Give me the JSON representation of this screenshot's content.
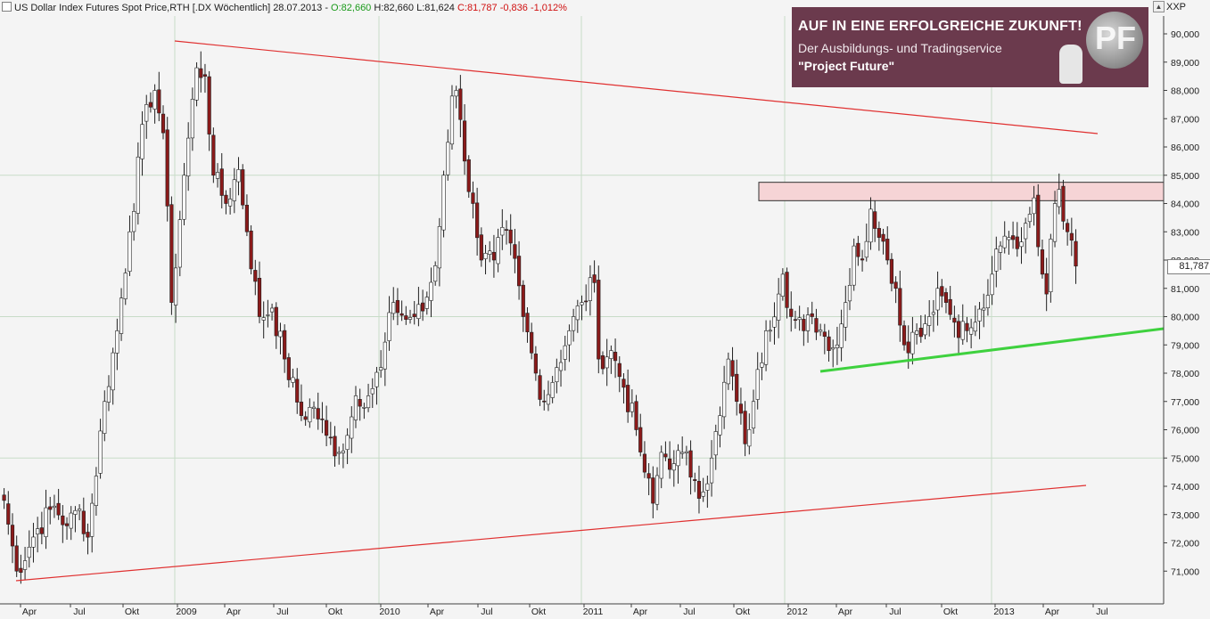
{
  "header": {
    "title": "US Dollar Index Futures Spot Price,RTH [.DX  Wöchentlich]",
    "date": "28.07.2013",
    "sep": "-",
    "open": "O:82,660",
    "high": "H:82,660",
    "low": "L:81,624",
    "close": "C:81,787",
    "change": "-0,836",
    "change_pct": "-1,012%",
    "corner_symbol": "XXP"
  },
  "ad": {
    "line1": "AUF IN EINE ERFOLGREICHE ZUKUNFT!",
    "line2": "Der Ausbildungs- und Tradingservice",
    "line3": "\"Project Future\"",
    "logo_text": "PF"
  },
  "price_label": "81,787",
  "colors": {
    "background": "#f4f4f4",
    "grid": "#c8dcc8",
    "bull_candle": "#ffffff",
    "bear_candle": "#8b1a1a",
    "trendline_red": "#e03030",
    "trendline_green": "#3ed13e",
    "zone_fill": "#f6d4d6",
    "ad_bg": "#6b3a4d"
  },
  "chart_data": {
    "type": "candlestick",
    "timeframe": "weekly",
    "ylim": [
      70.6,
      90.6
    ],
    "y_ticks": [
      "71,000",
      "72,000",
      "73,000",
      "74,000",
      "75,000",
      "76,000",
      "77,000",
      "78,000",
      "79,000",
      "80,000",
      "81,000",
      "82,000",
      "83,000",
      "84,000",
      "85,000",
      "86,000",
      "87,000",
      "88,000",
      "89,000",
      "90,000"
    ],
    "x_ticks": [
      "Apr",
      "Jul",
      "Okt",
      "2009",
      "Apr",
      "Jul",
      "Okt",
      "2010",
      "Apr",
      "Jul",
      "Okt",
      "2011",
      "Apr",
      "Jul",
      "Okt",
      "2012",
      "Apr",
      "Jul",
      "Okt",
      "2013",
      "Apr",
      "Jul"
    ],
    "x_range_weeks": [
      0,
      278
    ],
    "anchors": [
      [
        0,
        73.5
      ],
      [
        3,
        71.0
      ],
      [
        8,
        72.5
      ],
      [
        12,
        73.3
      ],
      [
        15,
        72.6
      ],
      [
        18,
        73.2
      ],
      [
        20,
        72.2
      ],
      [
        24,
        77.0
      ],
      [
        27,
        79.5
      ],
      [
        30,
        83.0
      ],
      [
        34,
        87.5
      ],
      [
        36,
        88.0
      ],
      [
        38,
        86.5
      ],
      [
        40,
        80.5
      ],
      [
        43,
        85.0
      ],
      [
        46,
        88.8
      ],
      [
        48,
        88.5
      ],
      [
        50,
        85.0
      ],
      [
        53,
        84.0
      ],
      [
        56,
        85.2
      ],
      [
        58,
        83.0
      ],
      [
        61,
        80.0
      ],
      [
        64,
        80.3
      ],
      [
        67,
        78.5
      ],
      [
        71,
        76.5
      ],
      [
        74,
        76.8
      ],
      [
        77,
        75.8
      ],
      [
        80,
        75.2
      ],
      [
        82,
        75.8
      ],
      [
        84,
        77.2
      ],
      [
        87,
        77.2
      ],
      [
        90,
        78.2
      ],
      [
        93,
        80.5
      ],
      [
        96,
        79.9
      ],
      [
        100,
        80.2
      ],
      [
        103,
        81.8
      ],
      [
        105,
        85.0
      ],
      [
        107,
        87.8
      ],
      [
        108,
        88.0
      ],
      [
        110,
        85.5
      ],
      [
        112,
        84.0
      ],
      [
        114,
        82.0
      ],
      [
        117,
        82.0
      ],
      [
        118,
        82.8
      ],
      [
        121,
        82.6
      ],
      [
        124,
        80.0
      ],
      [
        127,
        78.0
      ],
      [
        129,
        77.0
      ],
      [
        132,
        78.2
      ],
      [
        135,
        79.5
      ],
      [
        138,
        80.5
      ],
      [
        141,
        81.2
      ],
      [
        142,
        78.5
      ],
      [
        145,
        78.8
      ],
      [
        148,
        77.5
      ],
      [
        151,
        76.0
      ],
      [
        153,
        74.5
      ],
      [
        155,
        73.4
      ],
      [
        157,
        75.2
      ],
      [
        160,
        74.8
      ],
      [
        162,
        75.2
      ],
      [
        165,
        74.2
      ],
      [
        167,
        73.8
      ],
      [
        169,
        75.0
      ],
      [
        171,
        76.5
      ],
      [
        173,
        78.5
      ],
      [
        175,
        77.0
      ],
      [
        177,
        75.5
      ],
      [
        179,
        77.0
      ],
      [
        182,
        79.5
      ],
      [
        185,
        80.8
      ],
      [
        186,
        81.5
      ],
      [
        188,
        80.0
      ],
      [
        191,
        79.5
      ],
      [
        193,
        80.0
      ],
      [
        196,
        79.3
      ],
      [
        199,
        79.0
      ],
      [
        201,
        80.5
      ],
      [
        203,
        82.5
      ],
      [
        205,
        82.0
      ],
      [
        207,
        83.8
      ],
      [
        209,
        82.8
      ],
      [
        211,
        82.0
      ],
      [
        213,
        81.0
      ],
      [
        215,
        79.0
      ],
      [
        218,
        79.5
      ],
      [
        221,
        80.0
      ],
      [
        223,
        81.0
      ],
      [
        225,
        80.5
      ],
      [
        227,
        79.8
      ],
      [
        230,
        79.5
      ],
      [
        232,
        79.8
      ],
      [
        234,
        80.3
      ],
      [
        236,
        81.5
      ],
      [
        238,
        82.5
      ],
      [
        240,
        82.8
      ],
      [
        242,
        82.4
      ],
      [
        244,
        83.3
      ],
      [
        246,
        84.2
      ],
      [
        248,
        81.5
      ],
      [
        249,
        80.8
      ],
      [
        251,
        84.0
      ],
      [
        252,
        84.5
      ],
      [
        254,
        83.0
      ],
      [
        255,
        82.7
      ],
      [
        256,
        81.79
      ]
    ],
    "candles_note": "weekly OHLC candles reconstructed from anchor closes",
    "last_close": 81.787,
    "trendlines": [
      {
        "color": "red",
        "from": [
          20,
          89.8
        ],
        "to": [
          132,
          86.5
        ]
      },
      {
        "color": "red",
        "from": [
          0,
          70.7
        ],
        "to": [
          130,
          74.1
        ]
      },
      {
        "color": "green",
        "from": [
          28,
          78.05
        ],
        "to": [
          257,
          79.6
        ]
      }
    ],
    "resistance_zone": {
      "x_from": [
        169,
        278
      ],
      "y_range": [
        84.1,
        84.75
      ]
    }
  }
}
